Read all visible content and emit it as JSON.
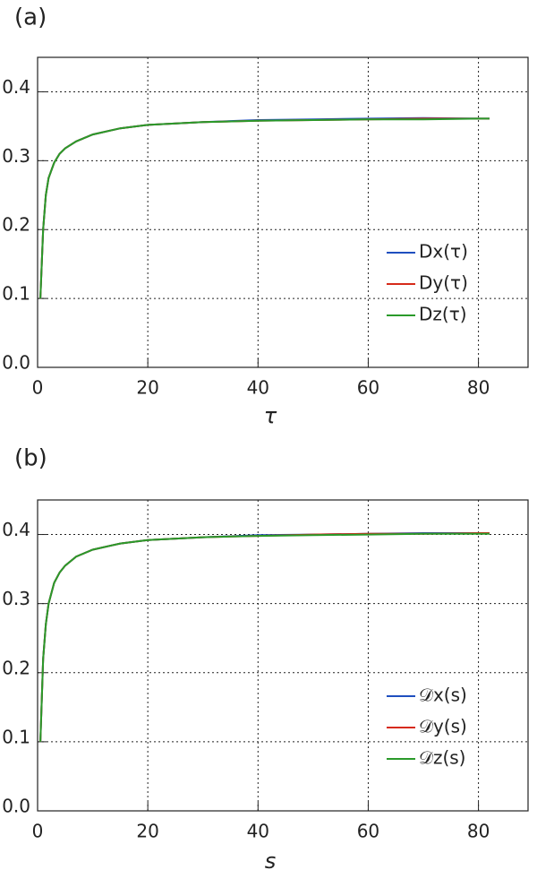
{
  "chart_data": [
    {
      "type": "line",
      "title": "(a)",
      "x_label": "τ",
      "x": [
        0.5,
        1,
        1.5,
        2,
        3,
        4,
        5,
        7,
        10,
        15,
        20,
        30,
        40,
        50,
        60,
        70,
        80,
        82
      ],
      "series": [
        {
          "name": "Dx(τ)",
          "color": "#1f4fbf",
          "values": [
            0.1,
            0.2,
            0.25,
            0.275,
            0.297,
            0.31,
            0.318,
            0.328,
            0.338,
            0.347,
            0.352,
            0.356,
            0.359,
            0.36,
            0.361,
            0.362,
            0.361,
            0.361
          ]
        },
        {
          "name": "Dy(τ)",
          "color": "#d62a1a",
          "values": [
            0.1,
            0.2,
            0.25,
            0.275,
            0.297,
            0.31,
            0.318,
            0.328,
            0.338,
            0.347,
            0.352,
            0.356,
            0.358,
            0.359,
            0.36,
            0.361,
            0.361,
            0.361
          ]
        },
        {
          "name": "Dz(τ)",
          "color": "#2a9a2a",
          "values": [
            0.1,
            0.2,
            0.25,
            0.275,
            0.297,
            0.31,
            0.318,
            0.328,
            0.338,
            0.347,
            0.352,
            0.356,
            0.358,
            0.359,
            0.36,
            0.36,
            0.361,
            0.361
          ]
        }
      ],
      "xlim": [
        0,
        89
      ],
      "ylim": [
        0,
        0.45
      ],
      "xticks": [
        0,
        20,
        40,
        60,
        80
      ],
      "yticks": [
        {
          "value": 0,
          "label": "0.0"
        },
        0.1,
        0.2,
        0.3,
        0.4
      ],
      "grid": true,
      "legend": "lower right"
    },
    {
      "type": "line",
      "title": "(b)",
      "x_label": "s",
      "x": [
        0.5,
        1,
        1.5,
        2,
        3,
        4,
        5,
        7,
        10,
        15,
        20,
        30,
        40,
        50,
        60,
        70,
        80,
        82
      ],
      "series": [
        {
          "name": "𝒟x(s)",
          "color": "#1f4fbf",
          "values": [
            0.1,
            0.22,
            0.27,
            0.3,
            0.33,
            0.345,
            0.355,
            0.368,
            0.378,
            0.387,
            0.392,
            0.396,
            0.399,
            0.4,
            0.401,
            0.402,
            0.402,
            0.402
          ]
        },
        {
          "name": "𝒟y(s)",
          "color": "#d62a1a",
          "values": [
            0.1,
            0.22,
            0.27,
            0.3,
            0.33,
            0.345,
            0.355,
            0.368,
            0.378,
            0.387,
            0.392,
            0.396,
            0.398,
            0.4,
            0.401,
            0.401,
            0.402,
            0.402
          ]
        },
        {
          "name": "𝒟z(s)",
          "color": "#2a9a2a",
          "values": [
            0.1,
            0.22,
            0.27,
            0.3,
            0.33,
            0.345,
            0.355,
            0.368,
            0.378,
            0.387,
            0.392,
            0.396,
            0.398,
            0.399,
            0.4,
            0.401,
            0.401,
            0.401
          ]
        }
      ],
      "xlim": [
        0,
        89
      ],
      "ylim": [
        0,
        0.45
      ],
      "xticks": [
        0,
        20,
        40,
        60,
        80
      ],
      "yticks": [
        {
          "value": 0,
          "label": "0.0"
        },
        0.1,
        0.2,
        0.3,
        0.4
      ],
      "grid": true,
      "legend": "lower right"
    }
  ]
}
